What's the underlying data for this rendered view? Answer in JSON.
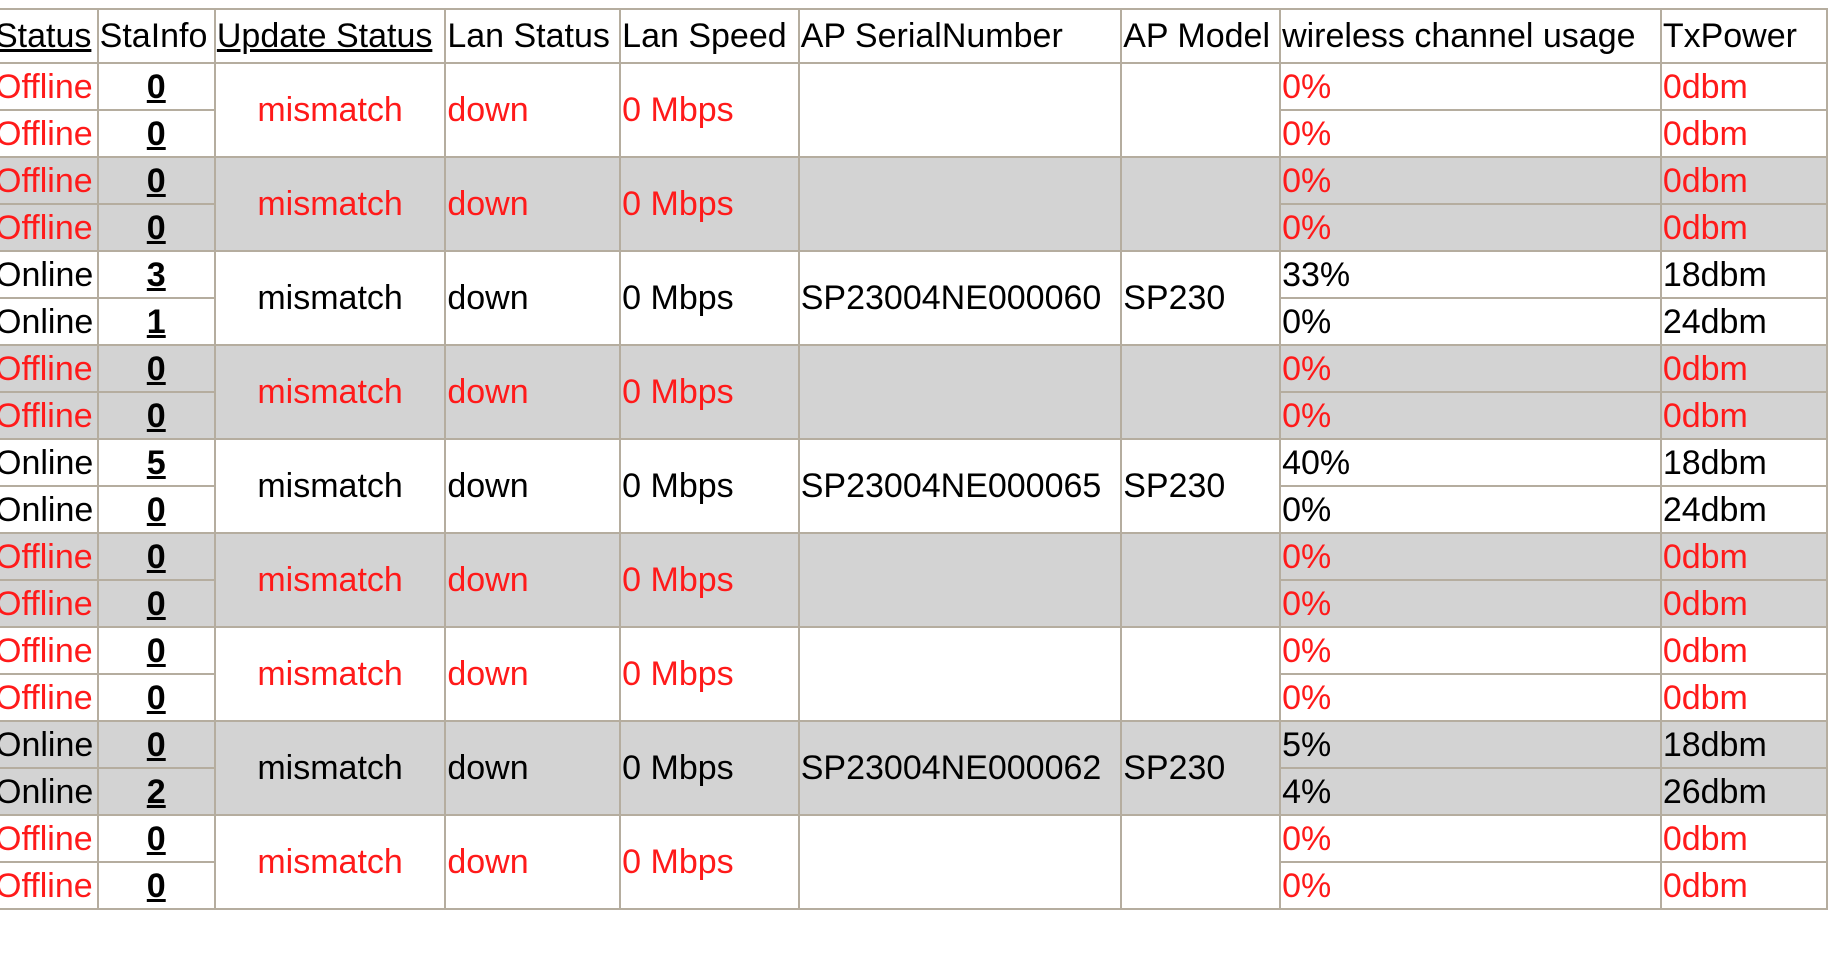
{
  "table": {
    "headers": [
      {
        "label": "Status",
        "sortable": true
      },
      {
        "label": "StaInfo",
        "sortable": false
      },
      {
        "label": "Update Status",
        "sortable": true
      },
      {
        "label": "Lan Status",
        "sortable": false
      },
      {
        "label": "Lan Speed",
        "sortable": false
      },
      {
        "label": "AP SerialNumber",
        "sortable": false
      },
      {
        "label": "AP Model",
        "sortable": false
      },
      {
        "label": "wireless channel usage",
        "sortable": false
      },
      {
        "label": "TxPower",
        "sortable": false
      }
    ],
    "groups": [
      {
        "state": "offline",
        "update_status": "mismatch",
        "lan_status": "down",
        "lan_speed": "0 Mbps",
        "serial": "",
        "model": "",
        "radios": [
          {
            "status": "Offline",
            "stainfo": "0",
            "usage": "0%",
            "txpower": "0dbm"
          },
          {
            "status": "Offline",
            "stainfo": "0",
            "usage": "0%",
            "txpower": "0dbm"
          }
        ]
      },
      {
        "state": "offline",
        "update_status": "mismatch",
        "lan_status": "down",
        "lan_speed": "0 Mbps",
        "serial": "",
        "model": "",
        "radios": [
          {
            "status": "Offline",
            "stainfo": "0",
            "usage": "0%",
            "txpower": "0dbm"
          },
          {
            "status": "Offline",
            "stainfo": "0",
            "usage": "0%",
            "txpower": "0dbm"
          }
        ]
      },
      {
        "state": "online",
        "update_status": "mismatch",
        "lan_status": "down",
        "lan_speed": "0 Mbps",
        "serial": "SP23004NE000060",
        "model": "SP230",
        "radios": [
          {
            "status": "Online",
            "stainfo": "3",
            "usage": "33%",
            "txpower": "18dbm"
          },
          {
            "status": "Online",
            "stainfo": "1",
            "usage": "0%",
            "txpower": "24dbm"
          }
        ]
      },
      {
        "state": "offline",
        "update_status": "mismatch",
        "lan_status": "down",
        "lan_speed": "0 Mbps",
        "serial": "",
        "model": "",
        "radios": [
          {
            "status": "Offline",
            "stainfo": "0",
            "usage": "0%",
            "txpower": "0dbm"
          },
          {
            "status": "Offline",
            "stainfo": "0",
            "usage": "0%",
            "txpower": "0dbm"
          }
        ]
      },
      {
        "state": "online",
        "update_status": "mismatch",
        "lan_status": "down",
        "lan_speed": "0 Mbps",
        "serial": "SP23004NE000065",
        "model": "SP230",
        "radios": [
          {
            "status": "Online",
            "stainfo": "5",
            "usage": "40%",
            "txpower": "18dbm"
          },
          {
            "status": "Online",
            "stainfo": "0",
            "usage": "0%",
            "txpower": "24dbm"
          }
        ]
      },
      {
        "state": "offline",
        "update_status": "mismatch",
        "lan_status": "down",
        "lan_speed": "0 Mbps",
        "serial": "",
        "model": "",
        "radios": [
          {
            "status": "Offline",
            "stainfo": "0",
            "usage": "0%",
            "txpower": "0dbm"
          },
          {
            "status": "Offline",
            "stainfo": "0",
            "usage": "0%",
            "txpower": "0dbm"
          }
        ]
      },
      {
        "state": "offline",
        "update_status": "mismatch",
        "lan_status": "down",
        "lan_speed": "0 Mbps",
        "serial": "",
        "model": "",
        "radios": [
          {
            "status": "Offline",
            "stainfo": "0",
            "usage": "0%",
            "txpower": "0dbm"
          },
          {
            "status": "Offline",
            "stainfo": "0",
            "usage": "0%",
            "txpower": "0dbm"
          }
        ]
      },
      {
        "state": "online",
        "update_status": "mismatch",
        "lan_status": "down",
        "lan_speed": "0 Mbps",
        "serial": "SP23004NE000062",
        "model": "SP230",
        "radios": [
          {
            "status": "Online",
            "stainfo": "0",
            "usage": "5%",
            "txpower": "18dbm"
          },
          {
            "status": "Online",
            "stainfo": "2",
            "usage": "4%",
            "txpower": "26dbm"
          }
        ]
      },
      {
        "state": "offline",
        "update_status": "mismatch",
        "lan_status": "down",
        "lan_speed": "0 Mbps",
        "serial": "",
        "model": "",
        "radios": [
          {
            "status": "Offline",
            "stainfo": "0",
            "usage": "0%",
            "txpower": "0dbm"
          },
          {
            "status": "Offline",
            "stainfo": "0",
            "usage": "0%",
            "txpower": "0dbm"
          }
        ]
      }
    ]
  },
  "colors": {
    "offline_text": "#ff1a1a",
    "online_text": "#000000",
    "shaded_row": "#d3d3d3",
    "plain_row": "#ffffff",
    "border": "#b5ad9f"
  }
}
